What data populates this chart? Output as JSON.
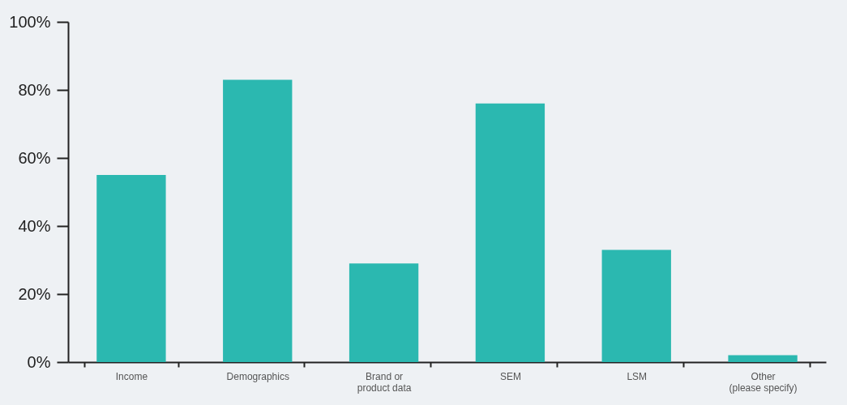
{
  "chart_data": {
    "type": "bar",
    "categories": [
      "Income",
      "Demographics",
      "Brand or\nproduct data",
      "SEM",
      "LSM",
      "Other\n(please specify)"
    ],
    "values": [
      55,
      83,
      29,
      76,
      33,
      2
    ],
    "color": "#2bb8b0",
    "ylim": [
      0,
      100
    ],
    "yticks": [
      {
        "value": 0,
        "label": "0%"
      },
      {
        "value": 20,
        "label": "20%"
      },
      {
        "value": 40,
        "label": "40%"
      },
      {
        "value": 60,
        "label": "60%"
      },
      {
        "value": 80,
        "label": "80%"
      },
      {
        "value": 100,
        "label": "100%"
      }
    ],
    "grid": false
  }
}
